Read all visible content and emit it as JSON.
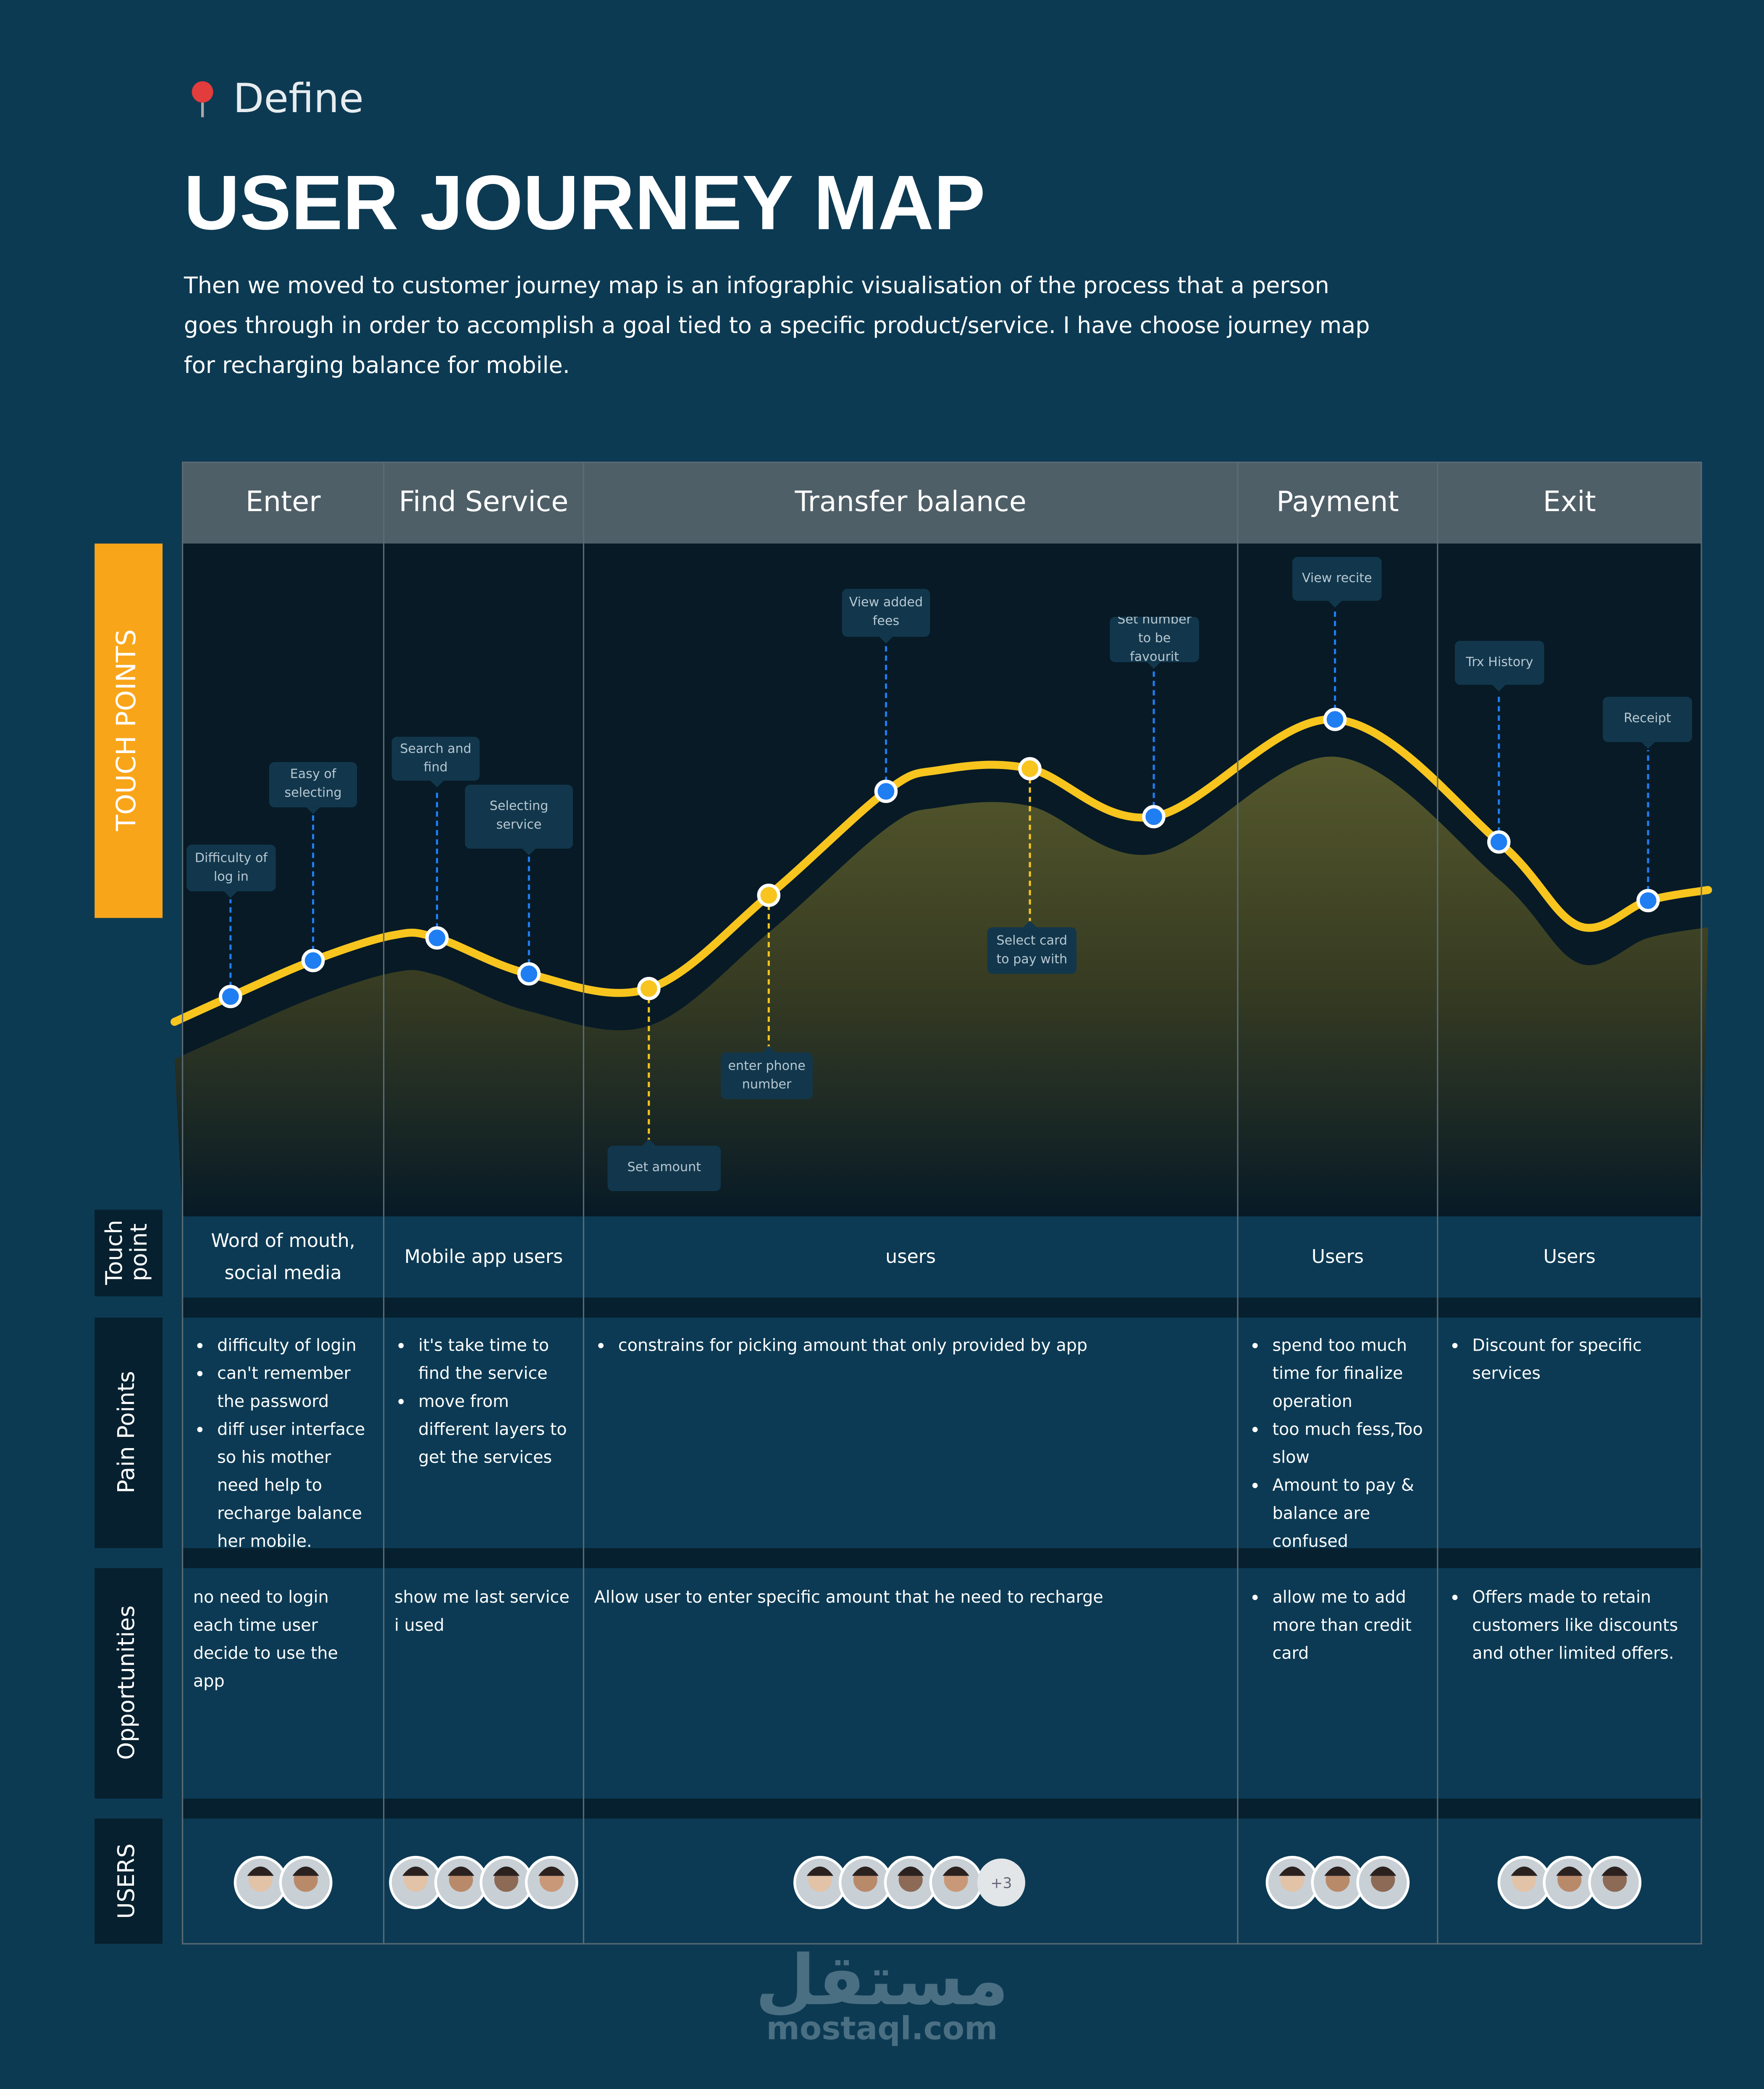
{
  "header": {
    "section": "Define",
    "title": "USER JOURNEY MAP",
    "description": "Then we moved to customer journey map is an infographic visualisation of the process that a person goes through in order to accomplish a goal tied to a specific product/service. I have choose journey map for recharging balance for mobile."
  },
  "row_labels": {
    "touch_points": "TOUCH POINTS",
    "touch_point": "Touch point",
    "pain_points": "Pain Points",
    "opportunities": "Opportunities",
    "users": "USERS"
  },
  "columns": [
    {
      "stage": "Enter",
      "touch_point": "Word of mouth, social media",
      "pain_points": [
        "difficulty of login",
        "can't remember the password",
        "diff user interface so his mother need help to recharge balance her mobile."
      ],
      "opportunities": "no need to login each time user decide to use the app"
    },
    {
      "stage": "Find Service",
      "touch_point": "Mobile app users",
      "pain_points": [
        "it's take time to find the service",
        "move from different layers to get the services"
      ],
      "opportunities": "show me  last service i used"
    },
    {
      "stage": "Transfer balance",
      "touch_point": "users",
      "pain_points": [
        "constrains for picking amount that only provided by app"
      ],
      "opportunities": "Allow user to enter specific amount that he need to recharge"
    },
    {
      "stage": "Payment",
      "touch_point": "Users",
      "pain_points": [
        "spend too much time for finalize operation",
        "too much fess,Too slow",
        "Amount to pay & balance are confused"
      ],
      "opportunities": [
        "allow me to add more than credit card"
      ]
    },
    {
      "stage": "Exit",
      "touch_point": "Users",
      "pain_points": [
        "Discount for specific services"
      ],
      "opportunities": [
        "Offers made to retain customers like discounts and other limited offers."
      ]
    }
  ],
  "touch_points": [
    "Difficulty of log in",
    "Easy of selecting",
    "Search and find",
    "Selecting service",
    "Set amount",
    "enter phone number",
    "View added fees",
    "Select card to pay with",
    "Set number to be favourit",
    "View recite",
    "Trx History",
    "Receipt"
  ],
  "users_extra": "+3",
  "watermark": {
    "logo": "مستقل",
    "site": "mostaql.com"
  }
}
